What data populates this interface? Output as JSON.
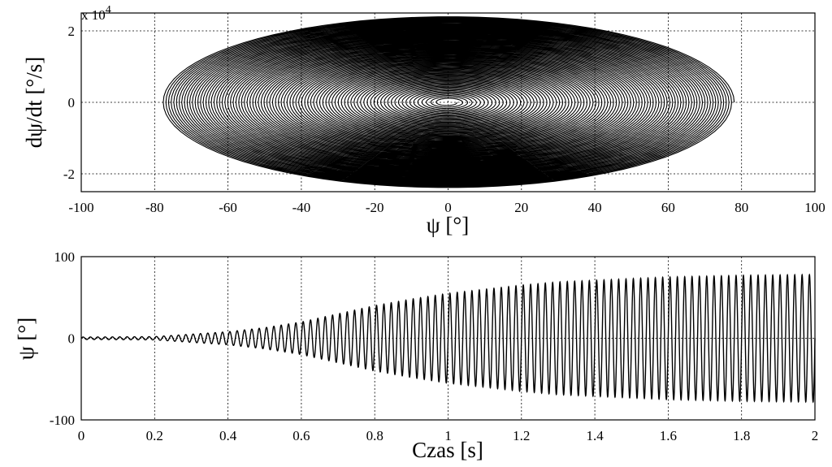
{
  "chart_data": [
    {
      "type": "line",
      "subtype": "phase portrait (outward spiral)",
      "xlabel": "ψ [°]",
      "ylabel": "dψ/dt [°/s]",
      "y_exponent_label": "x 10",
      "y_exponent_power": "4",
      "xlim": [
        -100,
        100
      ],
      "ylim": [
        -25000,
        25000
      ],
      "x_ticks": [
        -100,
        -80,
        -60,
        -40,
        -20,
        0,
        20,
        40,
        60,
        80,
        100
      ],
      "y_ticks": [
        -2,
        0,
        2
      ],
      "y_tick_scale": 10000,
      "grid": true,
      "spiral": {
        "center": [
          0,
          0
        ],
        "max_psi_amplitude": 78,
        "max_rate_amplitude": 24000,
        "loops": 90
      }
    },
    {
      "type": "line",
      "xlabel": "Czas [s]",
      "ylabel": "ψ [°]",
      "xlim": [
        0,
        2
      ],
      "ylim": [
        -100,
        100
      ],
      "x_ticks": [
        0,
        0.2,
        0.4,
        0.6,
        0.8,
        1,
        1.2,
        1.4,
        1.6,
        1.8,
        2
      ],
      "y_ticks": [
        -100,
        0,
        100
      ],
      "grid": true,
      "oscillation": {
        "frequency_hz": 50,
        "envelope": {
          "t": [
            0,
            0.2,
            0.3,
            0.4,
            0.5,
            0.6,
            0.7,
            0.8,
            0.9,
            1.0,
            1.1,
            1.2,
            1.3,
            1.4,
            1.5,
            1.6,
            1.8,
            2.0
          ],
          "amplitude": [
            1.5,
            2,
            5,
            8,
            13,
            20,
            30,
            40,
            48,
            55,
            60,
            65,
            69,
            71,
            73,
            75,
            77,
            78
          ]
        }
      }
    }
  ]
}
